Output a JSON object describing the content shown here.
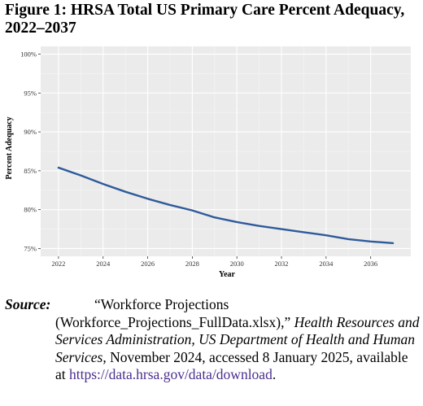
{
  "figure": {
    "title": "Figure 1: HRSA Total US Primary Care Percent Adequacy, 2022–2037"
  },
  "chart_data": {
    "type": "line",
    "title": "",
    "xlabel": "Year",
    "ylabel": "Percent Adequacy",
    "xlim": [
      2021.2,
      2037.8
    ],
    "ylim": [
      74,
      101
    ],
    "x_ticks": [
      2022,
      2024,
      2026,
      2028,
      2030,
      2032,
      2034,
      2036
    ],
    "x_tick_labels": [
      "2022",
      "2024",
      "2026",
      "2028",
      "2030",
      "2032",
      "2034",
      "2036"
    ],
    "y_ticks": [
      75,
      80,
      85,
      90,
      95,
      100
    ],
    "y_tick_labels": [
      "75%",
      "80%",
      "85%",
      "90%",
      "95%",
      "100%"
    ],
    "grid": true,
    "series": [
      {
        "x": [
          2022,
          2023,
          2024,
          2025,
          2026,
          2027,
          2028,
          2029,
          2030,
          2031,
          2032,
          2033,
          2034,
          2035,
          2036,
          2037
        ],
        "y": [
          85.4,
          84.4,
          83.3,
          82.3,
          81.4,
          80.6,
          79.9,
          79.0,
          78.4,
          77.9,
          77.5,
          77.1,
          76.7,
          76.2,
          75.9,
          75.7
        ],
        "color": "#2f5b9a"
      }
    ]
  },
  "source": {
    "label": "Source:",
    "quote_open": "“Workforce Projections",
    "file_part": "(Workforce_Projections_FullData.xlsx),”",
    "publisher": "Health Resources and Services Administration, US Department of Health and Human Services",
    "date_text": ", November 2024, accessed 8 January 2025, available at",
    "url": "https://data.hrsa.gov/data/download",
    "end": "."
  }
}
